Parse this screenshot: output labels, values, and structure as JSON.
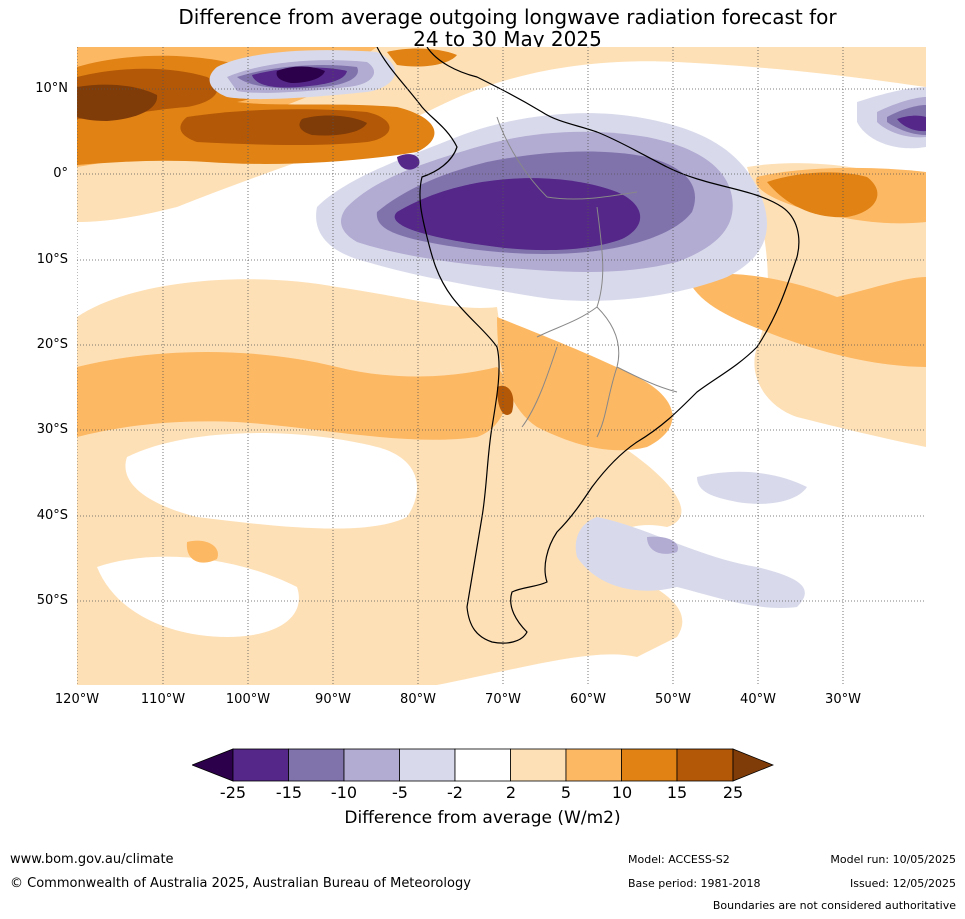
{
  "title": {
    "line1": "Difference from average outgoing longwave radiation forecast for",
    "line2": "24 to 30 May 2025"
  },
  "map": {
    "lat_labels": [
      "10°N",
      "0°",
      "10°S",
      "20°S",
      "30°S",
      "40°S",
      "50°S"
    ],
    "lon_labels": [
      "120°W",
      "110°W",
      "100°W",
      "90°W",
      "80°W",
      "70°W",
      "60°W",
      "50°W",
      "40°W",
      "30°W"
    ],
    "gridlines": "dotted",
    "colors": {
      "lt_-25": "#2d004b",
      "-25_-15": "#542788",
      "-15_-10": "#8073ac",
      "-10_-5": "#b2abd2",
      "-5_-2": "#d8daeb",
      "-2_2": "#ffffff",
      "2_5": "#fee0b6",
      "5_10": "#fdb863",
      "10_15": "#e08214",
      "15_25": "#b35806",
      "gt_25": "#7f3b08"
    }
  },
  "legend": {
    "ticks": [
      "-25",
      "-15",
      "-10",
      "-5",
      "-2",
      "2",
      "5",
      "10",
      "15",
      "25"
    ],
    "title": "Difference from average (W/m2)",
    "colors": [
      "#542788",
      "#8073ac",
      "#b2abd2",
      "#d8daeb",
      "#ffffff",
      "#fee0b6",
      "#fdb863",
      "#e08214",
      "#b35806"
    ],
    "under_color": "#2d004b",
    "over_color": "#7f3b08"
  },
  "footer": {
    "url": "www.bom.gov.au/climate",
    "copyright": "© Commonwealth of Australia 2025, Australian Bureau of Meteorology",
    "model": "Model: ACCESS-S2",
    "base_period": "Base period: 1981-2018",
    "model_run": "Model run: 10/05/2025",
    "issued": "Issued: 12/05/2025",
    "boundaries": "Boundaries are not considered authoritative"
  }
}
